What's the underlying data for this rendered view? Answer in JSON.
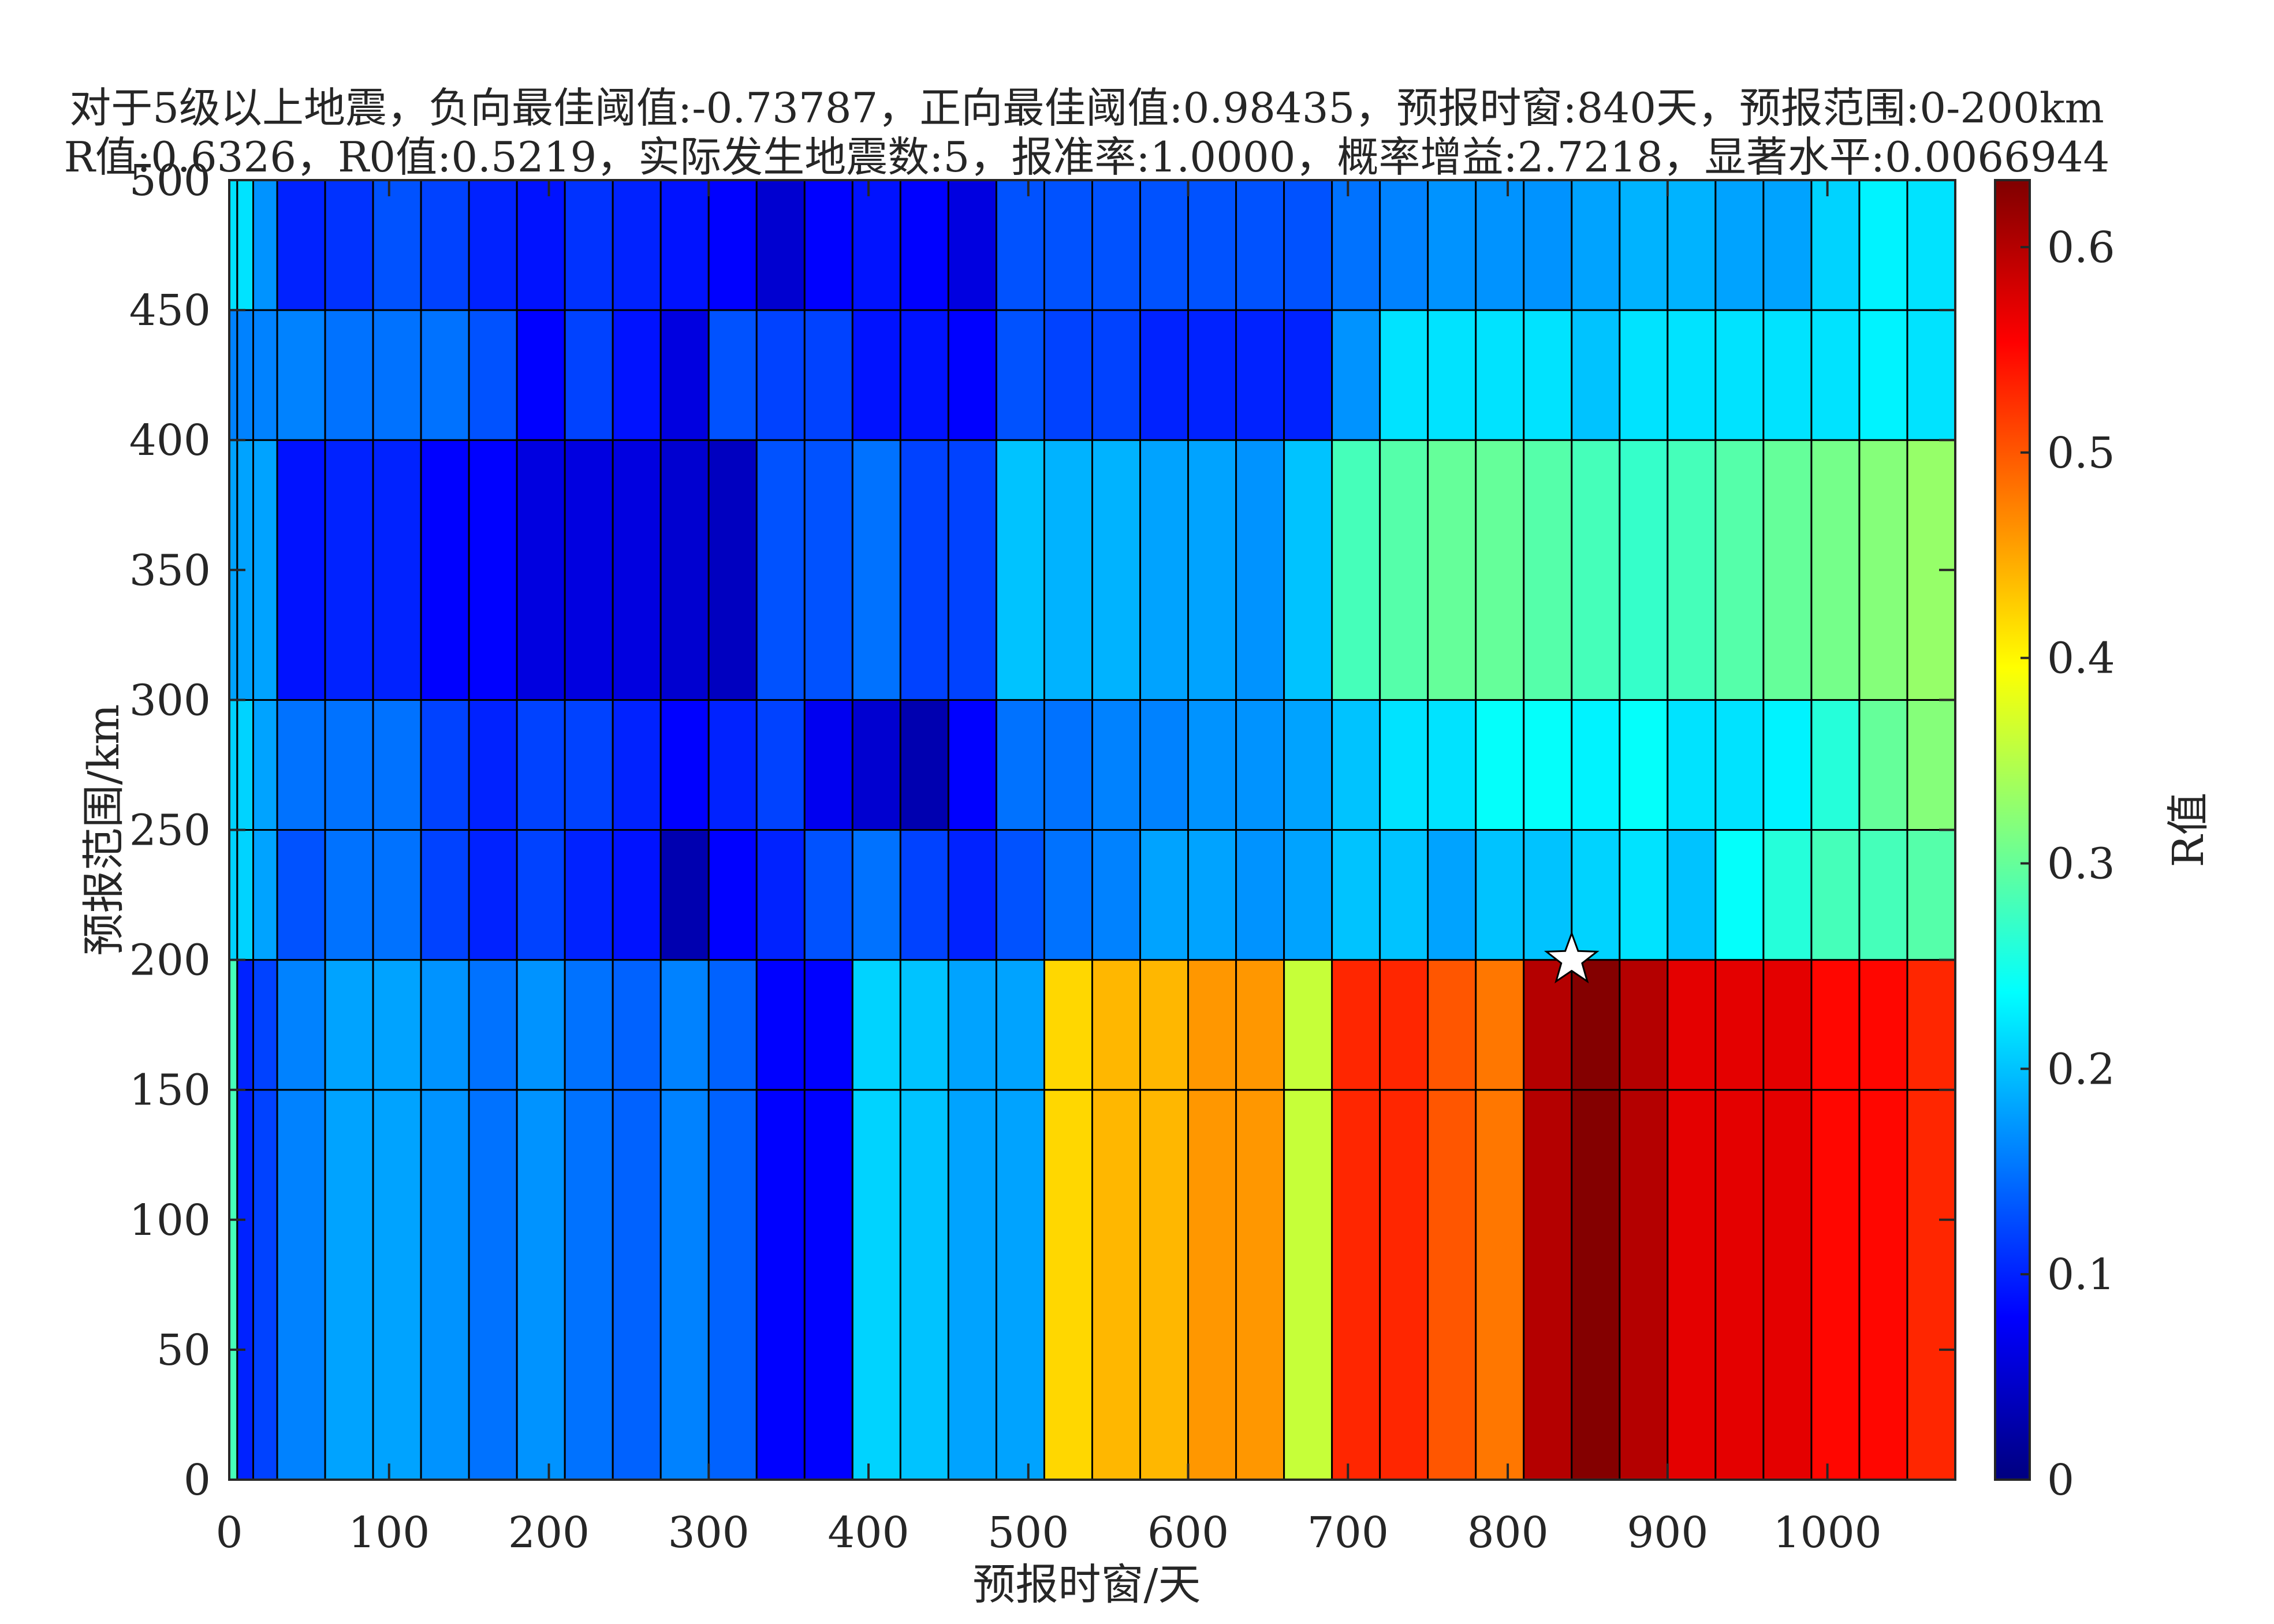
{
  "chart_data": {
    "type": "heatmap",
    "title": [
      "对于5级以上地震，负向最佳阈值:-0.73787，正向最佳阈值:0.98435，预报时窗:840天，预报范围:0-200km",
      "R值:0.6326，R0值:0.5219，实际发生地震数:5，报准率:1.0000，概率增益:2.7218，显著水平:0.0066944"
    ],
    "xlabel": "预报时窗/天",
    "ylabel": "预报范围/km",
    "colorbar_label": "R值",
    "xlim": [
      0,
      1080
    ],
    "ylim": [
      0,
      500
    ],
    "clim": [
      0,
      0.6326
    ],
    "colormap": "jet",
    "x_ticks": [
      0,
      100,
      200,
      300,
      400,
      500,
      600,
      700,
      800,
      900,
      1000
    ],
    "y_ticks": [
      0,
      50,
      100,
      150,
      200,
      250,
      300,
      350,
      400,
      450,
      500
    ],
    "colorbar_ticks": [
      0,
      0.1,
      0.2,
      0.3,
      0.4,
      0.5,
      0.6
    ],
    "x_edges": [
      0,
      5,
      15,
      30,
      60,
      90,
      120,
      150,
      180,
      210,
      240,
      270,
      300,
      330,
      360,
      390,
      420,
      450,
      480,
      510,
      540,
      570,
      600,
      630,
      660,
      690,
      720,
      750,
      780,
      810,
      840,
      870,
      900,
      930,
      960,
      990,
      1020,
      1050,
      1080
    ],
    "y_edges": [
      0,
      150,
      200,
      250,
      300,
      400,
      450,
      500
    ],
    "values": [
      [
        0.28,
        0.1,
        0.12,
        0.16,
        0.18,
        0.18,
        0.17,
        0.15,
        0.17,
        0.15,
        0.14,
        0.16,
        0.14,
        0.08,
        0.08,
        0.21,
        0.2,
        0.18,
        0.18,
        0.42,
        0.44,
        0.44,
        0.46,
        0.46,
        0.36,
        0.53,
        0.53,
        0.5,
        0.48,
        0.6,
        0.63,
        0.6,
        0.57,
        0.57,
        0.57,
        0.55,
        0.55,
        0.53
      ],
      [
        0.28,
        0.1,
        0.12,
        0.16,
        0.18,
        0.18,
        0.17,
        0.15,
        0.17,
        0.15,
        0.14,
        0.16,
        0.14,
        0.08,
        0.08,
        0.21,
        0.2,
        0.18,
        0.18,
        0.42,
        0.44,
        0.44,
        0.46,
        0.46,
        0.36,
        0.53,
        0.53,
        0.5,
        0.48,
        0.6,
        0.63,
        0.6,
        0.57,
        0.57,
        0.57,
        0.55,
        0.55,
        0.53
      ],
      [
        0.21,
        0.21,
        0.18,
        0.13,
        0.15,
        0.15,
        0.12,
        0.1,
        0.12,
        0.1,
        0.09,
        0.03,
        0.08,
        0.1,
        0.13,
        0.15,
        0.12,
        0.1,
        0.13,
        0.15,
        0.16,
        0.18,
        0.18,
        0.17,
        0.18,
        0.2,
        0.2,
        0.18,
        0.2,
        0.2,
        0.21,
        0.22,
        0.2,
        0.24,
        0.26,
        0.28,
        0.28,
        0.29
      ],
      [
        0.21,
        0.21,
        0.18,
        0.15,
        0.15,
        0.15,
        0.12,
        0.1,
        0.12,
        0.12,
        0.1,
        0.08,
        0.1,
        0.12,
        0.07,
        0.05,
        0.03,
        0.08,
        0.15,
        0.15,
        0.16,
        0.16,
        0.17,
        0.17,
        0.18,
        0.2,
        0.22,
        0.22,
        0.24,
        0.24,
        0.23,
        0.24,
        0.22,
        0.22,
        0.23,
        0.26,
        0.3,
        0.32
      ],
      [
        0.18,
        0.18,
        0.18,
        0.09,
        0.1,
        0.1,
        0.08,
        0.08,
        0.06,
        0.06,
        0.06,
        0.05,
        0.04,
        0.13,
        0.13,
        0.15,
        0.12,
        0.12,
        0.2,
        0.19,
        0.19,
        0.18,
        0.18,
        0.17,
        0.2,
        0.28,
        0.29,
        0.3,
        0.3,
        0.29,
        0.28,
        0.27,
        0.28,
        0.29,
        0.3,
        0.31,
        0.32,
        0.33
      ],
      [
        0.16,
        0.16,
        0.16,
        0.16,
        0.15,
        0.15,
        0.15,
        0.13,
        0.08,
        0.12,
        0.09,
        0.06,
        0.13,
        0.12,
        0.12,
        0.09,
        0.09,
        0.08,
        0.13,
        0.12,
        0.12,
        0.1,
        0.1,
        0.1,
        0.1,
        0.17,
        0.22,
        0.22,
        0.22,
        0.22,
        0.2,
        0.22,
        0.22,
        0.22,
        0.22,
        0.22,
        0.23,
        0.22
      ],
      [
        0.22,
        0.22,
        0.17,
        0.1,
        0.11,
        0.13,
        0.12,
        0.1,
        0.09,
        0.11,
        0.1,
        0.09,
        0.08,
        0.05,
        0.08,
        0.09,
        0.08,
        0.06,
        0.13,
        0.13,
        0.13,
        0.13,
        0.13,
        0.13,
        0.13,
        0.15,
        0.16,
        0.17,
        0.17,
        0.17,
        0.18,
        0.19,
        0.19,
        0.18,
        0.18,
        0.21,
        0.23,
        0.22
      ]
    ],
    "marker": {
      "symbol": "star",
      "x": 840,
      "y": 200,
      "color": "#ffffff"
    }
  }
}
